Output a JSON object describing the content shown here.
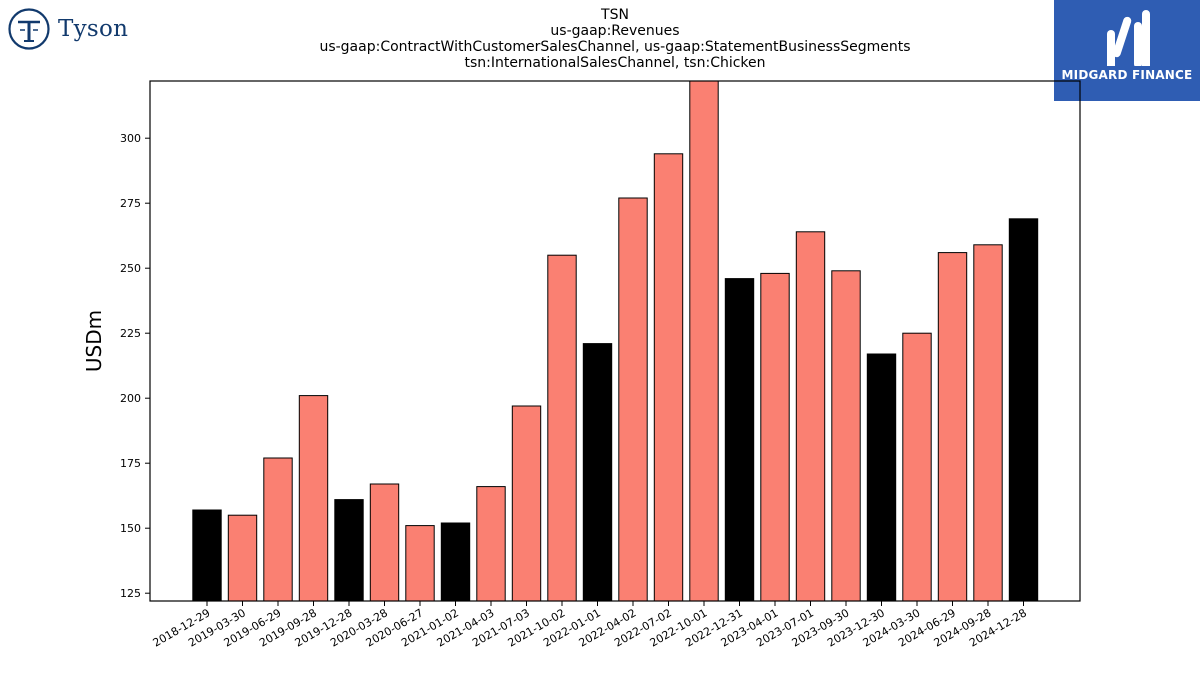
{
  "header": {
    "title_lines": [
      "TSN",
      "us-gaap:Revenues",
      "us-gaap:ContractWithCustomerSalesChannel, us-gaap:StatementBusinessSegments",
      "tsn:InternationalSalesChannel, tsn:Chicken"
    ]
  },
  "logos": {
    "left": {
      "text": "Tyson",
      "color": "#123a6d",
      "icon": "tyson-t-icon"
    },
    "right": {
      "text": "MIDGARD FINANCE",
      "background": "#2f5db3",
      "icon": "midgard-m-icon"
    }
  },
  "chart_data": {
    "type": "bar",
    "title": "TSN",
    "subtitle": "us-gaap:Revenues / us-gaap:ContractWithCustomerSalesChannel, us-gaap:StatementBusinessSegments / tsn:InternationalSalesChannel, tsn:Chicken",
    "xlabel": "",
    "ylabel": "USDm",
    "ylim": [
      122,
      322
    ],
    "yticks": [
      125,
      150,
      175,
      200,
      225,
      250,
      275,
      300
    ],
    "grid": false,
    "colors": {
      "annual": "#000000",
      "quarterly": "#fa8072",
      "edge": "#000000"
    },
    "categories": [
      "2018-12-29",
      "2019-03-30",
      "2019-06-29",
      "2019-09-28",
      "2019-12-28",
      "2020-03-28",
      "2020-06-27",
      "2021-01-02",
      "2021-04-03",
      "2021-07-03",
      "2021-10-02",
      "2022-01-01",
      "2022-04-02",
      "2022-07-02",
      "2022-10-01",
      "2022-12-31",
      "2023-04-01",
      "2023-07-01",
      "2023-09-30",
      "2023-12-30",
      "2024-03-30",
      "2024-06-29",
      "2024-09-28",
      "2024-12-28"
    ],
    "values": [
      157,
      155,
      177,
      201,
      161,
      167,
      151,
      152,
      166,
      197,
      255,
      221,
      277,
      294,
      322,
      246,
      248,
      264,
      249,
      217,
      225,
      256,
      259,
      269
    ],
    "bar_types": [
      "annual",
      "quarterly",
      "quarterly",
      "quarterly",
      "annual",
      "quarterly",
      "quarterly",
      "annual",
      "quarterly",
      "quarterly",
      "quarterly",
      "annual",
      "quarterly",
      "quarterly",
      "quarterly",
      "annual",
      "quarterly",
      "quarterly",
      "quarterly",
      "annual",
      "quarterly",
      "quarterly",
      "quarterly",
      "annual"
    ]
  }
}
